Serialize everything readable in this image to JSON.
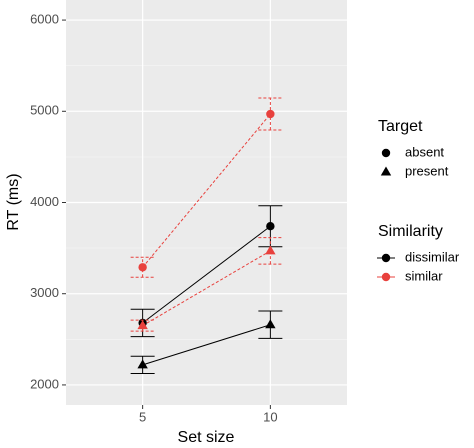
{
  "chart_data": {
    "type": "line",
    "x_label": "Set size",
    "y_label": "RT (ms)",
    "categories": [
      "5",
      "10"
    ],
    "ylim": [
      1780,
      6220
    ],
    "yticks": [
      2000,
      3000,
      4000,
      5000,
      6000
    ],
    "grid": true,
    "minor_grid": true,
    "series": [
      {
        "shape": "circle",
        "color": "#000000",
        "dash": false,
        "values": [
          2680,
          3740
        ],
        "errors": [
          150,
          225
        ]
      },
      {
        "shape": "triangle",
        "color": "#000000",
        "dash": false,
        "values": [
          2220,
          2660
        ],
        "errors": [
          95,
          150
        ]
      },
      {
        "shape": "circle",
        "color": "#e8413d",
        "dash": true,
        "values": [
          3290,
          4970
        ],
        "errors": [
          110,
          175
        ]
      },
      {
        "shape": "triangle",
        "color": "#e8413d",
        "dash": true,
        "values": [
          2650,
          3470
        ],
        "errors": [
          60,
          145
        ]
      }
    ],
    "legends": [
      {
        "title": "Target",
        "items": [
          {
            "label": "absent",
            "shape": "circle"
          },
          {
            "label": "present",
            "shape": "triangle"
          }
        ]
      },
      {
        "title": "Similarity",
        "items": [
          {
            "label": "dissimilar",
            "color": "#000000"
          },
          {
            "label": "similar",
            "color": "#e8413d"
          }
        ]
      }
    ]
  }
}
